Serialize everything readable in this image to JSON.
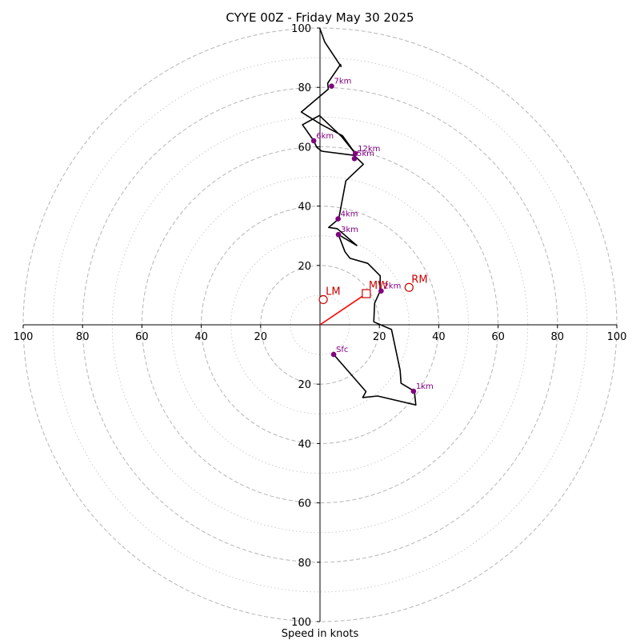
{
  "chart_data": {
    "type": "scatter",
    "title": "CYYE 00Z - Friday May 30 2025",
    "xlabel": "Speed in knots",
    "xlim": [
      -100,
      100
    ],
    "ylim": [
      -100,
      100
    ],
    "axis_tick_values": [
      100,
      80,
      60,
      40,
      20
    ],
    "axis_tick_labels": [
      "100",
      "80",
      "60",
      "40",
      "20"
    ],
    "ring_dashed": [
      20,
      40,
      60,
      80,
      100
    ],
    "ring_dotted": [
      10,
      30,
      50,
      70,
      90
    ],
    "grid": true,
    "hodograph": {
      "color": "#000000",
      "points": [
        [
          4.6,
          -10
        ],
        [
          15.5,
          -22.5
        ],
        [
          14.4,
          -24.5
        ],
        [
          19.4,
          -24
        ],
        [
          32.3,
          -27
        ],
        [
          31.8,
          -22.4
        ],
        [
          27.3,
          -19.7
        ],
        [
          27,
          -15.4
        ],
        [
          24.1,
          -1.6
        ],
        [
          18.1,
          1
        ],
        [
          18.4,
          7.3
        ],
        [
          20.2,
          11.2
        ],
        [
          20.3,
          16.5
        ],
        [
          16.1,
          20.7
        ],
        [
          10.1,
          22.4
        ],
        [
          8.4,
          24.6
        ],
        [
          6.2,
          30.4
        ],
        [
          12.4,
          26.7
        ],
        [
          5.8,
          32.4
        ],
        [
          2.9,
          32.8
        ],
        [
          6.3,
          35.7
        ],
        [
          8.7,
          48.5
        ],
        [
          14.6,
          54.1
        ],
        [
          11.5,
          57.1
        ],
        [
          0.6,
          58.5
        ],
        [
          -1.1,
          59.8
        ],
        [
          -2.1,
          62
        ],
        [
          -5.9,
          67.4
        ],
        [
          -0.2,
          70.5
        ],
        [
          7.2,
          63.5
        ],
        [
          11.9,
          57.7
        ],
        [
          7.6,
          63.7
        ],
        [
          0.4,
          67.5
        ],
        [
          -6.3,
          71.7
        ],
        [
          2.8,
          79.4
        ],
        [
          2.6,
          81.4
        ],
        [
          6.9,
          87.7
        ],
        [
          7.1,
          87
        ],
        [
          1.6,
          95.3
        ],
        [
          -0.1,
          100
        ]
      ]
    },
    "height_markers": {
      "color": "#800080",
      "points": [
        {
          "label": "Sfc",
          "u": 4.6,
          "v": -10
        },
        {
          "label": "1km",
          "u": 31.5,
          "v": -22.4
        },
        {
          "label": "2km",
          "u": 20.6,
          "v": 11.4
        },
        {
          "label": "3km",
          "u": 6.2,
          "v": 30.4
        },
        {
          "label": "4km",
          "u": 6.1,
          "v": 35.7
        },
        {
          "label": "5km",
          "u": 11.6,
          "v": 56
        },
        {
          "label": "6km",
          "u": -2.1,
          "v": 62
        },
        {
          "label": "7km",
          "u": 3.9,
          "v": 80.4
        },
        {
          "label": "12km",
          "u": 11.9,
          "v": 57.7
        }
      ]
    },
    "storm_motion": {
      "color": "#cc0000",
      "points": [
        {
          "label": "RM",
          "u": 30,
          "v": 12.6,
          "marker": "circle"
        },
        {
          "label": "LM",
          "u": 1.1,
          "v": 8.5,
          "marker": "circle"
        },
        {
          "label": "MW",
          "u": 15.6,
          "v": 10.5,
          "marker": "square"
        }
      ],
      "vector": [
        [
          0,
          0
        ],
        [
          15.6,
          10.5
        ]
      ]
    }
  }
}
